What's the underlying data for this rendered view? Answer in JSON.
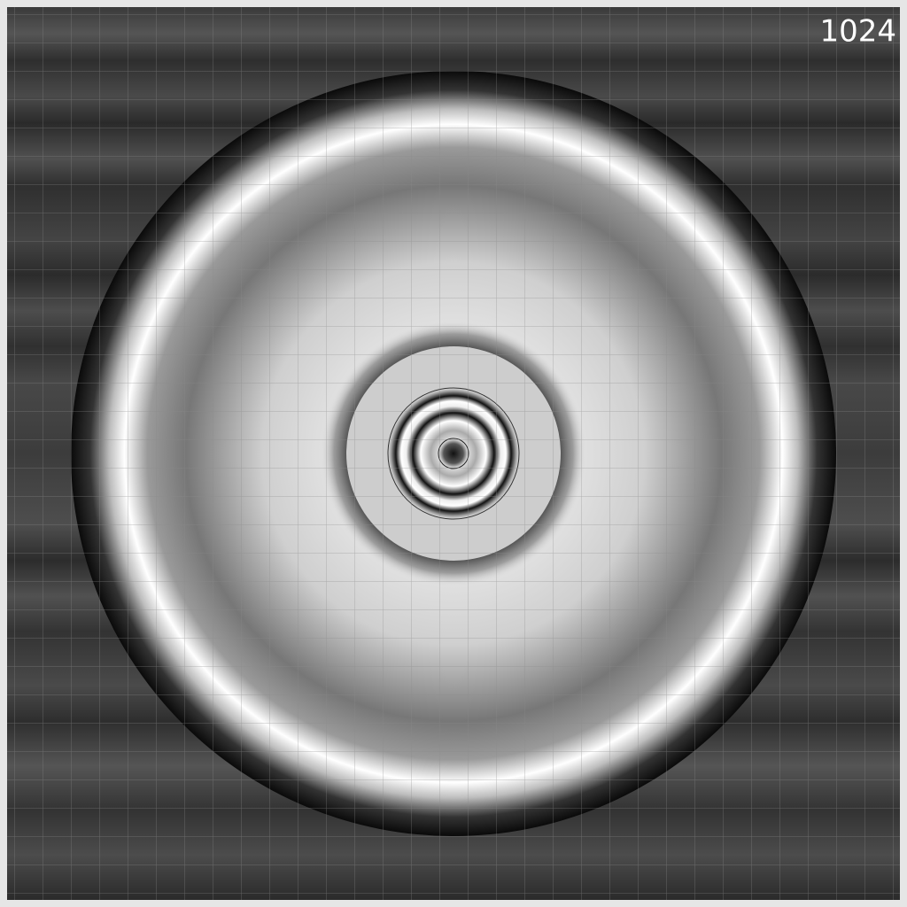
{
  "label": "1024"
}
